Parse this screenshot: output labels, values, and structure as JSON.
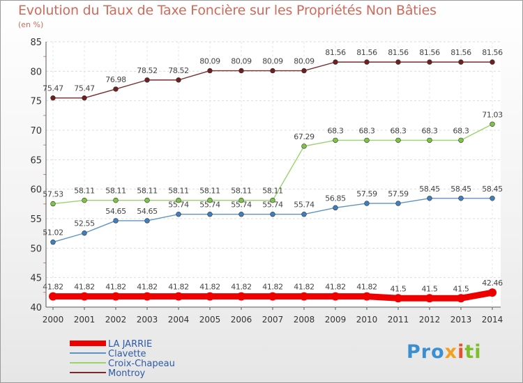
{
  "title": "Evolution du Taux de Taxe Foncière sur les Propriétés Non Bâties",
  "subtitle": "(en %)",
  "logo": {
    "text": "Proxiti",
    "parts": [
      "Pro",
      "x",
      "i",
      "ti"
    ]
  },
  "chart_data": {
    "type": "line",
    "title": "Evolution du Taux de Taxe Foncière sur les Propriétés Non Bâties",
    "ylabel": "(en %)",
    "xlabel": "",
    "ylim": [
      40,
      85
    ],
    "yticks": [
      40,
      45,
      50,
      55,
      60,
      65,
      70,
      75,
      80,
      85
    ],
    "x": [
      "2000",
      "2001",
      "2002",
      "2003",
      "2004",
      "2005",
      "2006",
      "2007",
      "2008",
      "2009",
      "2010",
      "2011",
      "2012",
      "2013",
      "2014"
    ],
    "legend_position": "bottom-left",
    "series": [
      {
        "name": "LA JARRIE",
        "color": "#ee0000",
        "point_color": "#ee0000",
        "thick": true,
        "values": [
          41.82,
          41.82,
          41.82,
          41.82,
          41.82,
          41.82,
          41.82,
          41.82,
          41.82,
          41.82,
          41.82,
          41.5,
          41.5,
          41.5,
          42.46
        ],
        "labels": [
          "41.82",
          "41.82",
          "41.82",
          "41.82",
          "41.82",
          "41.82",
          "41.82",
          "41.82",
          "41.82",
          "41.82",
          "41.82",
          "41.5",
          "41.5",
          "41.5",
          "42.46"
        ]
      },
      {
        "name": "Clavette",
        "color": "#5b93c8",
        "point_color": "#3f7fc0",
        "thick": false,
        "values": [
          51.02,
          52.55,
          54.65,
          54.65,
          55.74,
          55.74,
          55.74,
          55.74,
          55.74,
          56.85,
          57.59,
          57.59,
          58.45,
          58.45,
          58.45
        ],
        "labels": [
          "51.02",
          "52.55",
          "54.65",
          "54.65",
          "55.74",
          "55.74",
          "55.74",
          "55.74",
          "55.74",
          "56.85",
          "57.59",
          "57.59",
          "58.45",
          "58.45",
          "58.45"
        ]
      },
      {
        "name": "Croix-Chapeau",
        "color": "#9ad36a",
        "point_color": "#7cc444",
        "thick": false,
        "values": [
          57.53,
          58.11,
          58.11,
          58.11,
          58.11,
          58.11,
          58.11,
          58.11,
          67.29,
          68.3,
          68.3,
          68.3,
          68.3,
          68.3,
          71.03
        ],
        "labels": [
          "57.53",
          "58.11",
          "58.11",
          "58.11",
          "58.11",
          "58.11",
          "58.11",
          "58.11",
          "67.29",
          "68.3",
          "68.3",
          "68.3",
          "68.3",
          "68.3",
          "71.03"
        ]
      },
      {
        "name": "Montroy",
        "color": "#7a2a2a",
        "point_color": "#6e1f1f",
        "thick": false,
        "values": [
          75.47,
          75.47,
          76.98,
          78.52,
          78.52,
          80.09,
          80.09,
          80.09,
          80.09,
          81.56,
          81.56,
          81.56,
          81.56,
          81.56,
          81.56
        ],
        "labels": [
          "75.47",
          "75.47",
          "76.98",
          "78.52",
          "78.52",
          "80.09",
          "80.09",
          "80.09",
          "80.09",
          "81.56",
          "81.56",
          "81.56",
          "81.56",
          "81.56",
          "81.56"
        ]
      }
    ]
  }
}
